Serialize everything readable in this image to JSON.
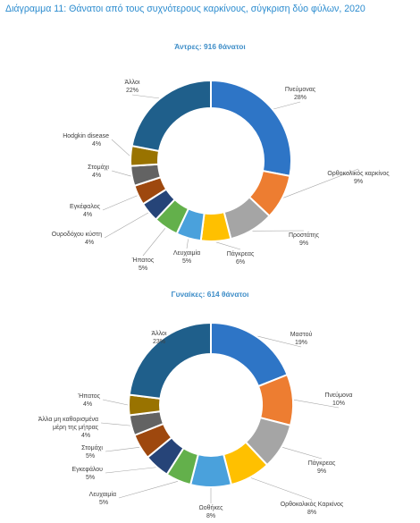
{
  "page": {
    "title": "Διάγραμμα 11: Θάνατοι από τους συχνότερους καρκίνους, σύγκριση δύο φύλων, 2020"
  },
  "chart_data": [
    {
      "type": "pie",
      "title": "Άντρες: 916 θάνατοι",
      "categories": [
        "Πνεύμονας",
        "Ορθοκολικός καρκίνος",
        "Προστάτης",
        "Πάγκρεας",
        "Λευχαιμία",
        "Ήπατος",
        "Ουροδόχου κύστη",
        "Εγκέφαλος",
        "Στομάχι",
        "Hodgkin disease",
        "Άλλοι"
      ],
      "values": [
        28,
        9,
        9,
        6,
        5,
        5,
        4,
        4,
        4,
        4,
        22
      ],
      "labels": [
        "28%",
        "9%",
        "9%",
        "6%",
        "5%",
        "5%",
        "4%",
        "4%",
        "4%",
        "4%",
        "22%"
      ],
      "colors": [
        "#2e75c6",
        "#ed7d31",
        "#a5a5a5",
        "#ffc000",
        "#4aa1dc",
        "#63b04b",
        "#264478",
        "#9e480e",
        "#636363",
        "#997300",
        "#1f5f8b"
      ]
    },
    {
      "type": "pie",
      "title": "Γυναίκες: 614 θάνατοι",
      "categories": [
        "Μαστού",
        "Πνεύμονα",
        "Πάγκρεας",
        "Ορθοκολικός Καρκίνος",
        "Ωοθήκες",
        "Λευχαιμία",
        "Εγκεφάλου",
        "Στομάχι",
        "Άλλα μη καθορισμένα μέρη της μήτρας",
        "Ήπατος",
        "Άλλοι"
      ],
      "values": [
        19,
        10,
        9,
        8,
        8,
        5,
        5,
        5,
        4,
        4,
        23
      ],
      "labels": [
        "19%",
        "10%",
        "9%",
        "8%",
        "8%",
        "5%",
        "5%",
        "5%",
        "4%",
        "4%",
        "23%"
      ],
      "colors": [
        "#2e75c6",
        "#ed7d31",
        "#a5a5a5",
        "#ffc000",
        "#4aa1dc",
        "#63b04b",
        "#264478",
        "#9e480e",
        "#636363",
        "#997300",
        "#1f5f8b"
      ]
    }
  ]
}
